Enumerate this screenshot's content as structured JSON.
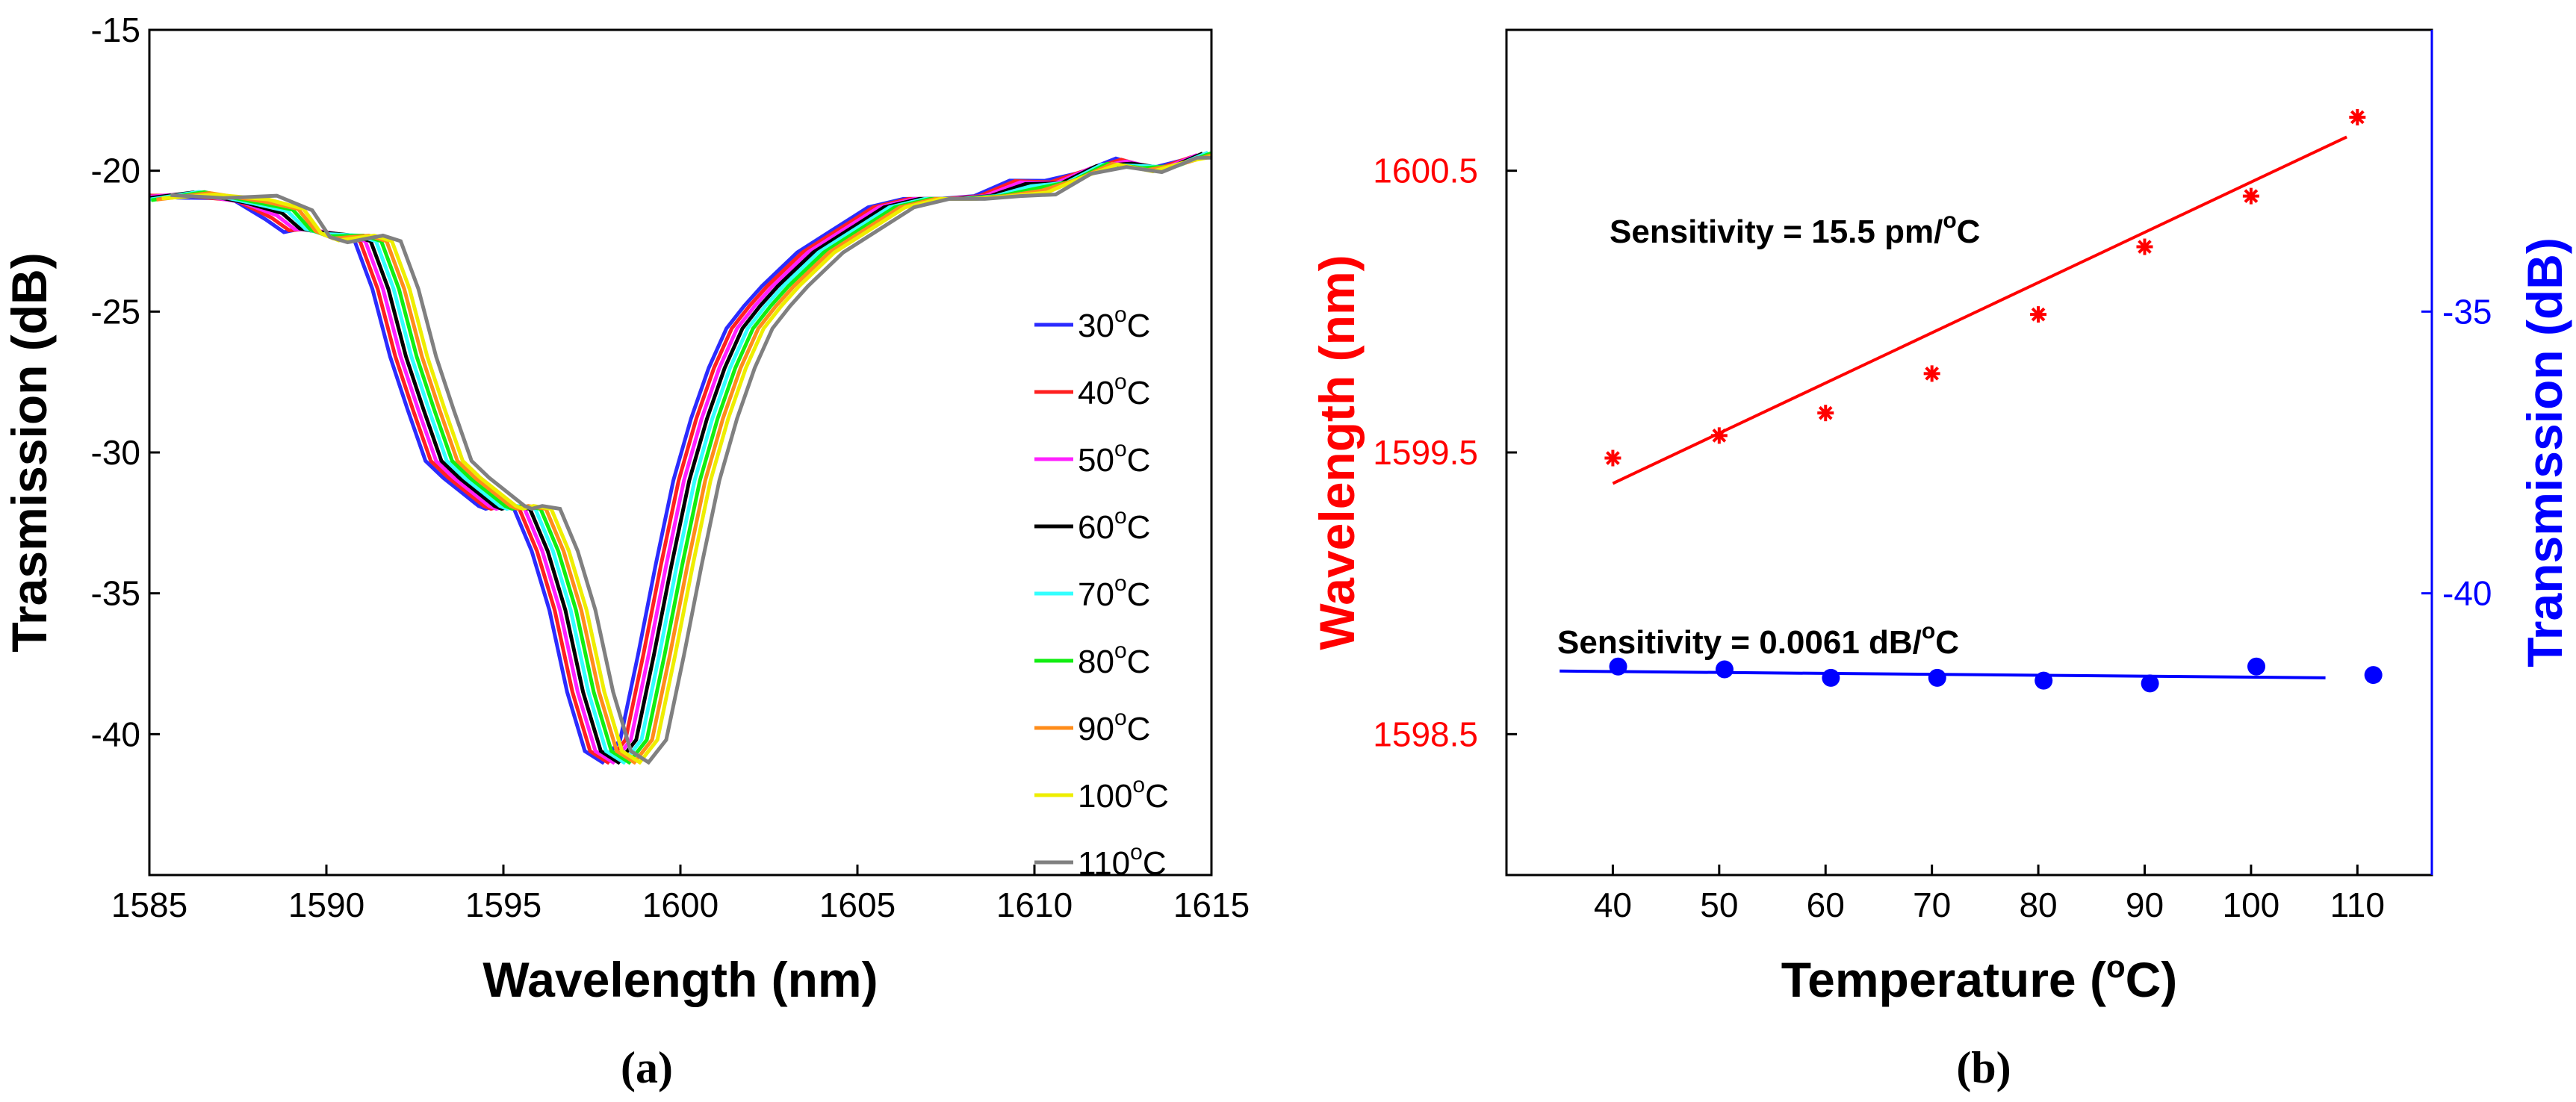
{
  "chart_data": [
    {
      "type": "line",
      "panel_label": "(a)",
      "xlabel": "Wavelength (nm)",
      "ylabel": "Trasmission (dB)",
      "xlim": [
        1585,
        1615
      ],
      "ylim": [
        -45,
        -15
      ],
      "xticks": [
        "1585",
        "1590",
        "1595",
        "1600",
        "1605",
        "1610",
        "1615"
      ],
      "yticks": [
        "-15",
        "-20",
        "-25",
        "-30",
        "-35",
        "-40"
      ],
      "legend_position": "right",
      "base_curve": {
        "x": [
          -15,
          -13.5,
          -12,
          -11,
          -10.5,
          -10,
          -9,
          -8.5,
          -8,
          -7.5,
          -7,
          -6.5,
          -6,
          -5.5,
          -5,
          -4.8,
          -4.5,
          -4,
          -3.5,
          -3,
          -2.5,
          -2,
          -1.5,
          -1,
          -0.5,
          0,
          0.5,
          1,
          1.5,
          2,
          2.5,
          3,
          3.5,
          4,
          4.5,
          5,
          6,
          7,
          8,
          9,
          10,
          11,
          12,
          13,
          14,
          15
        ],
        "y": [
          -20.8,
          -21.0,
          -20.9,
          -21.6,
          -22.3,
          -22.3,
          -22.3,
          -22.5,
          -24.2,
          -26.6,
          -28.5,
          -30.3,
          -30.9,
          -31.4,
          -31.9,
          -32.0,
          -31.9,
          -32.0,
          -33.5,
          -35.6,
          -38.5,
          -40.6,
          -41.0,
          -40.2,
          -37.2,
          -34.0,
          -31.0,
          -28.8,
          -27.0,
          -25.6,
          -24.8,
          -24.1,
          -23.5,
          -22.9,
          -22.5,
          -22.1,
          -21.3,
          -21.0,
          -21.0,
          -20.9,
          -20.6,
          -20.2,
          -20.0,
          -19.8,
          -19.7,
          -19.6
        ]
      },
      "series": [
        {
          "name": "30",
          "color": "#2b2bff",
          "shift_nm": -0.7
        },
        {
          "name": "40",
          "color": "#ff2020",
          "shift_nm": -0.55
        },
        {
          "name": "50",
          "color": "#ff20ff",
          "shift_nm": -0.4
        },
        {
          "name": "60",
          "color": "#000000",
          "shift_nm": -0.25
        },
        {
          "name": "70",
          "color": "#33ffff",
          "shift_nm": -0.1
        },
        {
          "name": "80",
          "color": "#11ee11",
          "shift_nm": 0.05
        },
        {
          "name": "90",
          "color": "#ff8c1a",
          "shift_nm": 0.2
        },
        {
          "name": "100",
          "color": "#eeee00",
          "shift_nm": 0.35
        },
        {
          "name": "110",
          "color": "#808080",
          "shift_nm": 0.6
        }
      ],
      "legend_unit_sup": "o",
      "legend_unit": "C"
    },
    {
      "type": "scatter",
      "panel_label": "(b)",
      "xlabel_main": "Temperature (",
      "xlabel_sup": "o",
      "xlabel_end": "C)",
      "ylabel_left": "Wavelength (nm)",
      "ylabel_right": "Transmission (dB)",
      "left_color": "#ff0000",
      "right_color": "#0000ff",
      "xlim": [
        30,
        117
      ],
      "ylim_left": [
        1598,
        1601
      ],
      "ylim_right": [
        -45,
        -30
      ],
      "xticks": [
        "40",
        "50",
        "60",
        "70",
        "80",
        "90",
        "100",
        "110"
      ],
      "yticks_left": [
        "1598.5",
        "1599.5",
        "1600.5"
      ],
      "yticks_right": [
        "-35",
        "-40"
      ],
      "wavelength_points": {
        "x": [
          40,
          50,
          60,
          70,
          80,
          90,
          100,
          110
        ],
        "y": [
          1599.48,
          1599.56,
          1599.64,
          1599.78,
          1599.99,
          1600.23,
          1600.41,
          1600.69
        ]
      },
      "wavelength_fit": {
        "x": [
          40,
          109
        ],
        "y": [
          1599.39,
          1600.62
        ]
      },
      "transmission_points": {
        "x": [
          40,
          50,
          60,
          70,
          80,
          90,
          100,
          110
        ],
        "y": [
          -41.3,
          -41.35,
          -41.5,
          -41.5,
          -41.55,
          -41.6,
          -41.3,
          -41.45
        ]
      },
      "transmission_fit": {
        "x": [
          35,
          107
        ],
        "y": [
          -41.38,
          -41.5
        ]
      },
      "annotation_wavelength_main": "Sensitivity = 15.5 pm/",
      "annotation_wavelength_sup": "o",
      "annotation_wavelength_end": "C",
      "annotation_transmission_main": "Sensitivity = 0.0061 dB/",
      "annotation_transmission_sup": "o",
      "annotation_transmission_end": "C"
    }
  ]
}
